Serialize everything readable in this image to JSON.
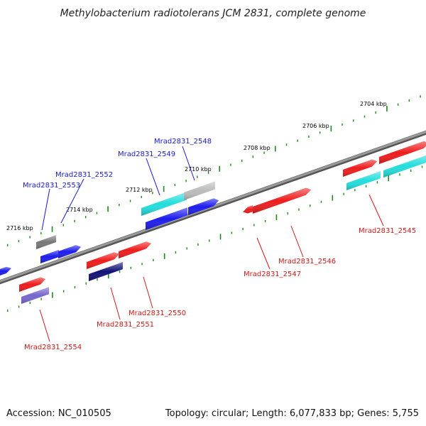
{
  "title": "Methylobacterium radiotolerans JCM 2831, complete genome",
  "footer": {
    "accession": "Accession: NC_010505",
    "summary": "Topology: circular; Length: 6,077,833 bp; Genes: 5,755"
  },
  "colors": {
    "backbone": "#8a8a8a",
    "tick": "#1a8a1a",
    "forward_label": "#1a1acc",
    "reverse_label": "#cc1a1a",
    "red": "#ee1c1c",
    "blue": "#1c1cee",
    "cyan": "#22dddd",
    "navy": "#111177",
    "violet": "#7766cc",
    "gray": "#777777",
    "lightgray": "#bbbbbb"
  },
  "scale_ticks": [
    {
      "kbp": 2704,
      "label": "2704 kbp"
    },
    {
      "kbp": 2706,
      "label": "2706 kbp"
    },
    {
      "kbp": 2708,
      "label": "2708 kbp"
    },
    {
      "kbp": 2710,
      "label": "2710 kbp"
    },
    {
      "kbp": 2712,
      "label": "2712 kbp"
    },
    {
      "kbp": 2714,
      "label": "2714 kbp"
    },
    {
      "kbp": 2716,
      "label": "2716 kbp"
    }
  ],
  "gene_labels": [
    {
      "text": "Mrad2831_2548",
      "strand": "forward"
    },
    {
      "text": "Mrad2831_2549",
      "strand": "forward"
    },
    {
      "text": "Mrad2831_2552",
      "strand": "forward"
    },
    {
      "text": "Mrad2831_2553",
      "strand": "forward"
    },
    {
      "text": "Mrad2831_2545",
      "strand": "reverse"
    },
    {
      "text": "Mrad2831_2546",
      "strand": "reverse"
    },
    {
      "text": "Mrad2831_2547",
      "strand": "reverse"
    },
    {
      "text": "Mrad2831_2550",
      "strand": "reverse"
    },
    {
      "text": "Mrad2831_2551",
      "strand": "reverse"
    },
    {
      "text": "Mrad2831_2554",
      "strand": "reverse"
    }
  ]
}
